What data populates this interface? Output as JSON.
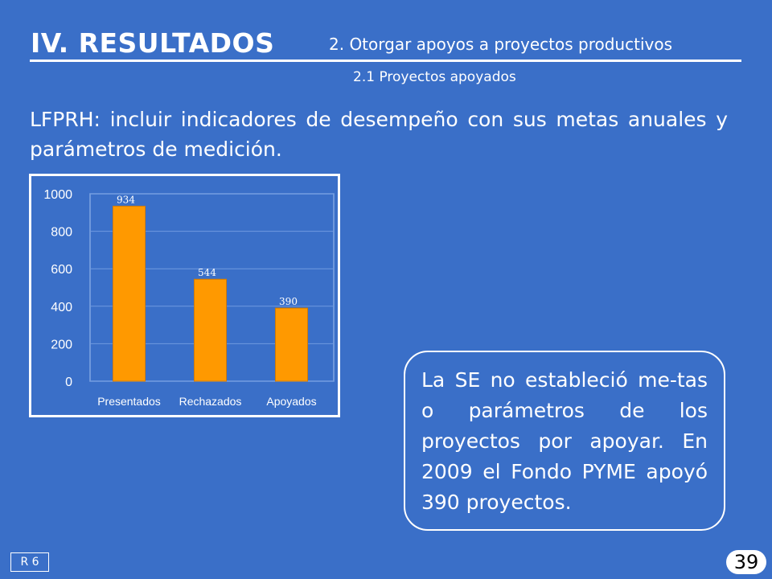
{
  "header": {
    "title": "IV. RESULTADOS",
    "subtitle": "2. Otorgar apoyos a proyectos productivos",
    "subsection": "2.1 Proyectos apoyados"
  },
  "intro_text": "LFPRH: incluir indicadores de desempeño con sus metas anuales y parámetros de medición.",
  "callout_text": "La SE no estableció me-tas o parámetros de los proyectos por apoyar. En 2009 el Fondo PYME apoyó 390 proyectos.",
  "footer": {
    "reference": "R 6",
    "page_number": "39"
  },
  "colors": {
    "background": "#3a6fc8",
    "bar": "#ff9900",
    "text": "#ffffff"
  },
  "chart_data": {
    "type": "bar",
    "categories": [
      "Presentados",
      "Rechazados",
      "Apoyados"
    ],
    "values": [
      934,
      544,
      390
    ],
    "data_labels": [
      "934",
      "544",
      "390"
    ],
    "y_ticks": [
      0,
      200,
      400,
      600,
      800,
      1000
    ],
    "ylim": [
      0,
      1000
    ],
    "grid": true,
    "legend": "none"
  }
}
